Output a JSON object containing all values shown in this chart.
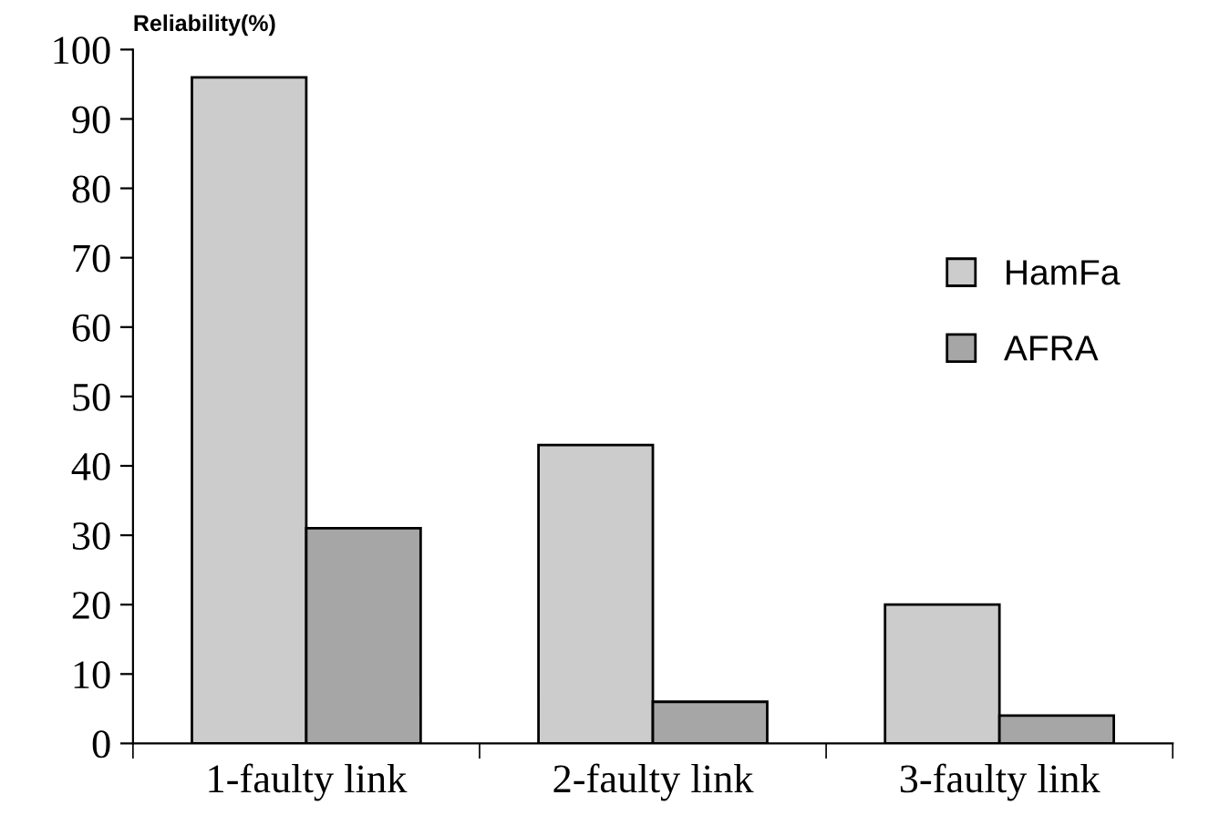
{
  "chart_data": {
    "type": "bar",
    "ylabel": "Reliability(%)",
    "categories": [
      "1-faulty link",
      "2-faulty link",
      "3-faulty link"
    ],
    "series": [
      {
        "name": "HamFa",
        "color": "#cccccc",
        "values": [
          96,
          43,
          20
        ]
      },
      {
        "name": "AFRA",
        "color": "#a6a6a6",
        "values": [
          31,
          6,
          4
        ]
      }
    ],
    "ylim": [
      0,
      100
    ],
    "yticks": [
      0,
      10,
      20,
      30,
      40,
      50,
      60,
      70,
      80,
      90,
      100
    ],
    "grid": false,
    "legend": "right"
  }
}
